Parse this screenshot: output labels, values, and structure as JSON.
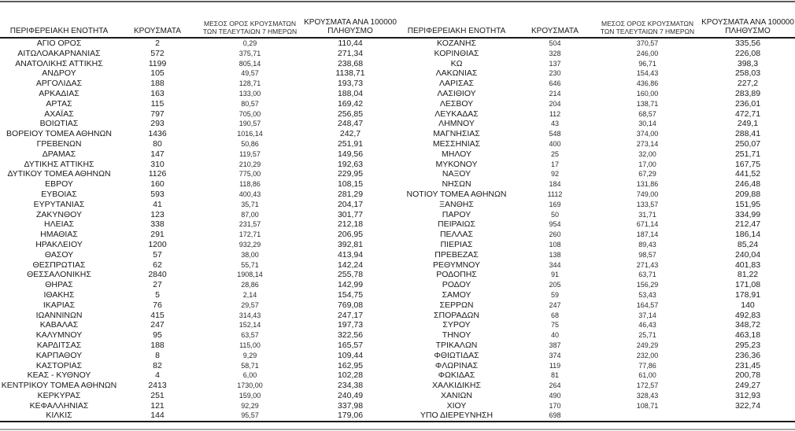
{
  "headers": {
    "region": "ΠΕΡΙΦΕΡΕΙΑΚΗ ΕΝΟΤΗΤΑ",
    "cases": "ΚΡΟΥΣΜΑΤΑ",
    "avg7": [
      "ΜΕΣΟΣ ΟΡΟΣ ΚΡΟΥΣΜΑΤΩΝ",
      "ΤΩΝ ΤΕΛΕΥΤΑΙΩΝ 7 ΗΜΕΡΩΝ"
    ],
    "per100k": [
      "ΚΡΟΥΣΜΑΤΑ ΑΝΑ 100000",
      "ΠΛΗΘΥΣΜΟ"
    ]
  },
  "colors": {
    "text": "#1a1a1a",
    "rule": "#1a1a1a"
  },
  "tables": {
    "left": {
      "rows": [
        [
          "ΑΓΙΟ ΟΡΟΣ",
          "2",
          "0,29",
          "110,44"
        ],
        [
          "ΑΙΤΩΛΟΑΚΑΡΝΑΝΙΑΣ",
          "572",
          "375,71",
          "271,34"
        ],
        [
          "ΑΝΑΤΟΛΙΚΗΣ ΑΤΤΙΚΗΣ",
          "1199",
          "805,14",
          "238,68"
        ],
        [
          "ΑΝΔΡΟΥ",
          "105",
          "49,57",
          "1138,71"
        ],
        [
          "ΑΡΓΟΛΙΔΑΣ",
          "188",
          "128,71",
          "193,73"
        ],
        [
          "ΑΡΚΑΔΙΑΣ",
          "163",
          "133,00",
          "188,04"
        ],
        [
          "ΑΡΤΑΣ",
          "115",
          "80,57",
          "169,42"
        ],
        [
          "ΑΧΑΪΑΣ",
          "797",
          "705,00",
          "256,85"
        ],
        [
          "ΒΟΙΩΤΙΑΣ",
          "293",
          "190,57",
          "248,47"
        ],
        [
          "ΒΟΡΕΙΟΥ ΤΟΜΕΑ ΑΘΗΝΩΝ",
          "1436",
          "1016,14",
          "242,7"
        ],
        [
          "ΓΡΕΒΕΝΩΝ",
          "80",
          "50,86",
          "251,91"
        ],
        [
          "ΔΡΑΜΑΣ",
          "147",
          "119,57",
          "149,56"
        ],
        [
          "ΔΥΤΙΚΗΣ ΑΤΤΙΚΗΣ",
          "310",
          "210,29",
          "192,63"
        ],
        [
          "ΔΥΤΙΚΟΥ ΤΟΜΕΑ ΑΘΗΝΩΝ",
          "1126",
          "775,00",
          "229,95"
        ],
        [
          "ΕΒΡΟΥ",
          "160",
          "118,86",
          "108,15"
        ],
        [
          "ΕΥΒΟΙΑΣ",
          "593",
          "400,43",
          "281,29"
        ],
        [
          "ΕΥΡΥΤΑΝΙΑΣ",
          "41",
          "35,71",
          "204,17"
        ],
        [
          "ΖΑΚΥΝΘΟΥ",
          "123",
          "87,00",
          "301,77"
        ],
        [
          "ΗΛΕΙΑΣ",
          "338",
          "231,57",
          "212,18"
        ],
        [
          "ΗΜΑΘΙΑΣ",
          "291",
          "172,71",
          "206,95"
        ],
        [
          "ΗΡΑΚΛΕΙΟΥ",
          "1200",
          "932,29",
          "392,81"
        ],
        [
          "ΘΑΣΟΥ",
          "57",
          "38,00",
          "413,94"
        ],
        [
          "ΘΕΣΠΡΩΤΙΑΣ",
          "62",
          "55,71",
          "142,24"
        ],
        [
          "ΘΕΣΣΑΛΟΝΙΚΗΣ",
          "2840",
          "1908,14",
          "255,78"
        ],
        [
          "ΘΗΡΑΣ",
          "27",
          "28,86",
          "142,99"
        ],
        [
          "ΙΘΑΚΗΣ",
          "5",
          "2,14",
          "154,75"
        ],
        [
          "ΙΚΑΡΙΑΣ",
          "76",
          "29,57",
          "769,08"
        ],
        [
          "ΙΩΑΝΝΙΝΩΝ",
          "415",
          "314,43",
          "247,17"
        ],
        [
          "ΚΑΒΑΛΑΣ",
          "247",
          "152,14",
          "197,73"
        ],
        [
          "ΚΑΛΥΜΝΟΥ",
          "95",
          "63,57",
          "322,56"
        ],
        [
          "ΚΑΡΔΙΤΣΑΣ",
          "188",
          "115,00",
          "165,57"
        ],
        [
          "ΚΑΡΠΑΘΟΥ",
          "8",
          "9,29",
          "109,44"
        ],
        [
          "ΚΑΣΤΟΡΙΑΣ",
          "82",
          "58,71",
          "162,95"
        ],
        [
          "ΚΕΑΣ - ΚΥΘΝΟΥ",
          "4",
          "6,00",
          "102,28"
        ],
        [
          "ΚΕΝΤΡΙΚΟΥ ΤΟΜΕΑ ΑΘΗΝΩΝ",
          "2413",
          "1730,00",
          "234,38"
        ],
        [
          "ΚΕΡΚΥΡΑΣ",
          "251",
          "159,00",
          "240,49"
        ],
        [
          "ΚΕΦΑΛΛΗΝΙΑΣ",
          "121",
          "92,29",
          "337,98"
        ],
        [
          "ΚΙΛΚΙΣ",
          "144",
          "95,57",
          "179,06"
        ]
      ]
    },
    "right": {
      "rows": [
        [
          "ΚΟΖΑΝΗΣ",
          "504",
          "370,57",
          "335,56"
        ],
        [
          "ΚΟΡΙΝΘΙΑΣ",
          "328",
          "246,00",
          "226,08"
        ],
        [
          "ΚΩ",
          "137",
          "96,71",
          "398,3"
        ],
        [
          "ΛΑΚΩΝΙΑΣ",
          "230",
          "154,43",
          "258,03"
        ],
        [
          "ΛΑΡΙΣΑΣ",
          "646",
          "436,86",
          "227,2"
        ],
        [
          "ΛΑΣΙΘΙΟΥ",
          "214",
          "160,00",
          "283,89"
        ],
        [
          "ΛΕΣΒΟΥ",
          "204",
          "138,71",
          "236,01"
        ],
        [
          "ΛΕΥΚΑΔΑΣ",
          "112",
          "68,57",
          "472,71"
        ],
        [
          "ΛΗΜΝΟΥ",
          "43",
          "30,14",
          "249,1"
        ],
        [
          "ΜΑΓΝΗΣΙΑΣ",
          "548",
          "374,00",
          "288,41"
        ],
        [
          "ΜΕΣΣΗΝΙΑΣ",
          "400",
          "273,14",
          "250,07"
        ],
        [
          "ΜΗΛΟΥ",
          "25",
          "32,00",
          "251,71"
        ],
        [
          "ΜΥΚΟΝΟΥ",
          "17",
          "17,00",
          "167,75"
        ],
        [
          "ΝΑΞΟΥ",
          "92",
          "67,29",
          "441,52"
        ],
        [
          "ΝΗΣΩΝ",
          "184",
          "131,86",
          "246,48"
        ],
        [
          "ΝΟΤΙΟΥ ΤΟΜΕΑ ΑΘΗΝΩΝ",
          "1112",
          "749,00",
          "209,88"
        ],
        [
          "ΞΑΝΘΗΣ",
          "169",
          "133,57",
          "151,95"
        ],
        [
          "ΠΑΡΟΥ",
          "50",
          "31,71",
          "334,99"
        ],
        [
          "ΠΕΙΡΑΙΩΣ",
          "954",
          "671,14",
          "212,47"
        ],
        [
          "ΠΕΛΛΑΣ",
          "260",
          "187,14",
          "186,14"
        ],
        [
          "ΠΙΕΡΙΑΣ",
          "108",
          "89,43",
          "85,24"
        ],
        [
          "ΠΡΕΒΕΖΑΣ",
          "138",
          "98,57",
          "240,04"
        ],
        [
          "ΡΕΘΥΜΝΟΥ",
          "344",
          "271,43",
          "401,83"
        ],
        [
          "ΡΟΔΟΠΗΣ",
          "91",
          "63,71",
          "81,22"
        ],
        [
          "ΡΟΔΟΥ",
          "205",
          "156,29",
          "171,08"
        ],
        [
          "ΣΑΜΟΥ",
          "59",
          "53,43",
          "178,91"
        ],
        [
          "ΣΕΡΡΩΝ",
          "247",
          "164,57",
          "140"
        ],
        [
          "ΣΠΟΡΑΔΩΝ",
          "68",
          "37,14",
          "492,83"
        ],
        [
          "ΣΥΡΟΥ",
          "75",
          "46,43",
          "348,72"
        ],
        [
          "ΤΗΝΟΥ",
          "40",
          "25,71",
          "463,18"
        ],
        [
          "ΤΡΙΚΑΛΩΝ",
          "387",
          "249,29",
          "295,23"
        ],
        [
          "ΦΘΙΩΤΙΔΑΣ",
          "374",
          "232,00",
          "236,36"
        ],
        [
          "ΦΛΩΡΙΝΑΣ",
          "119",
          "77,86",
          "231,45"
        ],
        [
          "ΦΩΚΙΔΑΣ",
          "81",
          "61,00",
          "200,78"
        ],
        [
          "ΧΑΛΚΙΔΙΚΗΣ",
          "264",
          "172,57",
          "249,27"
        ],
        [
          "ΧΑΝΙΩΝ",
          "490",
          "328,43",
          "312,93"
        ],
        [
          "ΧΙΟΥ",
          "170",
          "108,71",
          "322,74"
        ],
        [
          "ΥΠΟ ΔΙΕΡΕΥΝΗΣΗ",
          "698",
          "",
          ""
        ]
      ]
    }
  }
}
